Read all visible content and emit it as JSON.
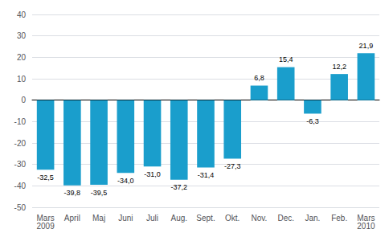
{
  "chart_data": {
    "type": "bar",
    "categories": [
      "Mars\n2009",
      "April",
      "Maj",
      "Juni",
      "Juli",
      "Aug.",
      "Sept.",
      "Okt.",
      "Nov.",
      "Dec.",
      "Jan.",
      "Feb.",
      "Mars\n2010"
    ],
    "values": [
      -32.5,
      -39.8,
      -39.5,
      -34.0,
      -31.0,
      -37.2,
      -31.4,
      -27.3,
      6.8,
      15.4,
      -6.3,
      12.2,
      21.9
    ],
    "value_labels": [
      "-32,5",
      "-39,8",
      "-39,5",
      "-34,0",
      "-31,0",
      "-37,2",
      "-31,4",
      "-27,3",
      "6,8",
      "15,4",
      "-6,3",
      "12,2",
      "21,9"
    ],
    "color": "#1a9ecc",
    "ylim": [
      -50,
      40
    ],
    "yticks": [
      -50,
      -40,
      -30,
      -20,
      -10,
      0,
      10,
      20,
      30,
      40
    ],
    "grid": true,
    "data_labels": true
  }
}
